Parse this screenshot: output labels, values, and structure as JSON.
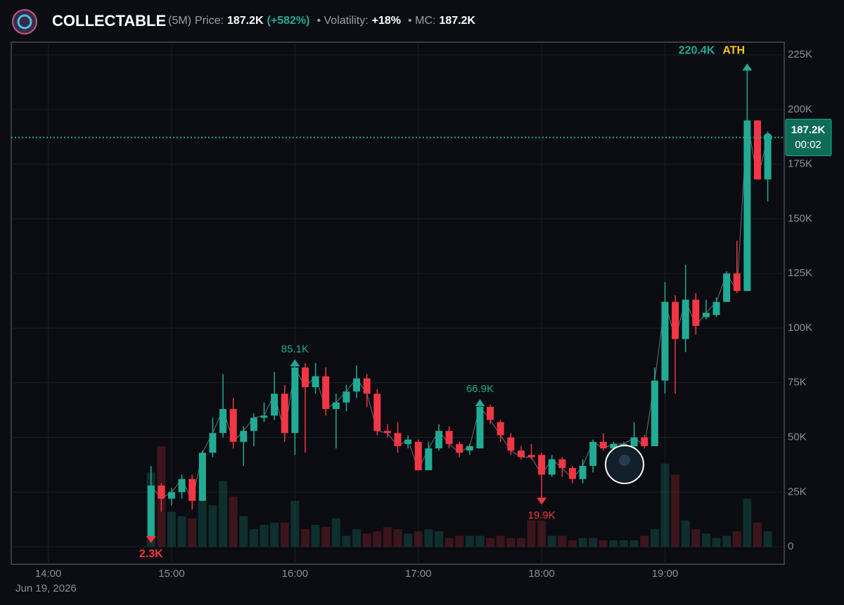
{
  "header": {
    "title": "COLLECTABLE",
    "interval": "(5M)",
    "price_label": "Price:",
    "price": "187.2K",
    "change": "(+582%)",
    "volatility_label": "• Volatility:",
    "volatility": "+18%",
    "mc_label": "• MC:",
    "mc": "187.2K"
  },
  "chart_data": {
    "type": "candlestick",
    "x": [
      "14:50",
      "14:55",
      "15:00",
      "15:05",
      "15:10",
      "15:15",
      "15:20",
      "15:25",
      "15:30",
      "15:35",
      "15:40",
      "15:45",
      "15:50",
      "15:55",
      "16:00",
      "16:05",
      "16:10",
      "16:15",
      "16:20",
      "16:25",
      "16:30",
      "16:35",
      "16:40",
      "16:45",
      "16:50",
      "16:55",
      "17:00",
      "17:05",
      "17:10",
      "17:15",
      "17:20",
      "17:25",
      "17:30",
      "17:35",
      "17:40",
      "17:45",
      "17:50",
      "17:55",
      "18:00",
      "18:05",
      "18:10",
      "18:15",
      "18:20",
      "18:25",
      "18:30",
      "18:35",
      "18:40",
      "18:45",
      "18:50",
      "18:55",
      "19:00",
      "19:05",
      "19:10",
      "19:15",
      "19:20",
      "19:25",
      "19:30",
      "19:35",
      "19:40",
      "19:45",
      "19:50"
    ],
    "open": [
      4,
      28,
      22,
      25,
      31,
      21,
      43,
      52,
      63,
      48,
      53,
      59,
      60,
      70,
      52,
      82,
      73,
      78,
      63,
      66,
      71,
      77,
      70,
      53,
      52,
      47,
      48,
      35,
      45,
      53,
      47,
      44,
      45,
      64,
      57,
      50,
      44,
      42,
      42,
      33,
      40,
      36,
      31,
      37,
      48,
      45,
      46,
      46,
      50,
      46,
      76,
      112,
      95,
      113,
      105,
      106,
      112,
      125,
      117,
      195,
      168
    ],
    "high": [
      37,
      29,
      27,
      33,
      33,
      44,
      59,
      79,
      68,
      55,
      61,
      66,
      80,
      74,
      85.1,
      84,
      84,
      82,
      70,
      74,
      83,
      79,
      72,
      56,
      57,
      51,
      49,
      48,
      56,
      55,
      48,
      47,
      66.9,
      65,
      58,
      52,
      46,
      47,
      43,
      42,
      41,
      37,
      40,
      49,
      52,
      48,
      48,
      57,
      51,
      82,
      121,
      115,
      129,
      116,
      113,
      114,
      126,
      140,
      220.4,
      195,
      190
    ],
    "low": [
      2.3,
      16,
      19,
      22,
      17,
      21,
      41,
      50,
      45,
      37,
      46,
      57,
      58,
      48,
      42,
      43,
      70,
      60,
      45,
      62,
      68,
      64,
      51,
      50,
      43,
      45,
      35,
      35,
      44,
      45,
      41,
      42,
      45,
      56,
      48,
      42,
      40,
      40,
      19.9,
      32,
      32,
      29,
      29,
      34,
      44,
      44,
      45,
      44,
      45,
      46,
      70,
      70,
      89,
      97,
      104,
      105,
      112,
      116,
      117,
      168,
      158
    ],
    "close": [
      28,
      22,
      25,
      31,
      21,
      43,
      52,
      63,
      48,
      53,
      59,
      60,
      70,
      52,
      82,
      73,
      78,
      63,
      66,
      71,
      77,
      70,
      53,
      52,
      46,
      49,
      35,
      45,
      53,
      47,
      43,
      46,
      64,
      58,
      51,
      44,
      41,
      41,
      33,
      40,
      36,
      31,
      37,
      48,
      45,
      47,
      47,
      50,
      46,
      76,
      112,
      95,
      113,
      101,
      107,
      112,
      125,
      117,
      195,
      168,
      187.2
    ],
    "volume": [
      34,
      46,
      16,
      14,
      13,
      21,
      19,
      30,
      23,
      14,
      8,
      10,
      11,
      11,
      21,
      8,
      10,
      9,
      13,
      5,
      8,
      6,
      7,
      9,
      8,
      6,
      7,
      8,
      7,
      4,
      5,
      5,
      5,
      4,
      5,
      4,
      4,
      12,
      12,
      5,
      5,
      3,
      4,
      4,
      3,
      3,
      3,
      3,
      5,
      8,
      38,
      33,
      12,
      8,
      6,
      4,
      5,
      7,
      22,
      11,
      7
    ],
    "up_color": "#22ab94",
    "down_color": "#f23645",
    "xlim": [
      "13:42",
      "19:58"
    ],
    "xticks": [
      "14:00",
      "15:00",
      "16:00",
      "17:00",
      "18:00",
      "19:00"
    ],
    "ylim": [
      -8,
      230.8
    ],
    "yticks": [
      0,
      {
        "value": 25,
        "label": "25K"
      },
      {
        "value": 50,
        "label": "50K"
      },
      {
        "value": 75,
        "label": "75K"
      },
      {
        "value": 100,
        "label": "100K"
      },
      {
        "value": 125,
        "label": "125K"
      },
      {
        "value": 150,
        "label": "150K"
      },
      {
        "value": 175,
        "label": "175K"
      },
      {
        "value": 200,
        "label": "200K"
      },
      {
        "value": 225,
        "label": "225K"
      }
    ],
    "grid": true,
    "date": "Jun 19, 2026",
    "last_price": {
      "value": 187.2,
      "label": "187.2K"
    },
    "countdown": "00:02",
    "markers": [
      {
        "value": 220.4,
        "label": "220.4K",
        "tag": "ATH",
        "kind": "high"
      },
      {
        "value": 85.1,
        "label": "85.1K",
        "kind": "high"
      },
      {
        "value": 66.9,
        "label": "66.9K",
        "kind": "high"
      },
      {
        "value": 19.9,
        "label": "19.9K",
        "kind": "low"
      },
      {
        "value": 2.3,
        "label": "2.3K",
        "kind": "low"
      }
    ]
  }
}
